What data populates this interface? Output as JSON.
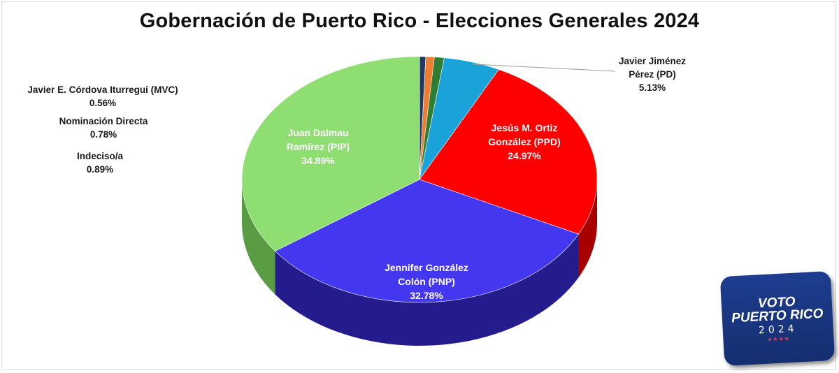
{
  "chart_data": {
    "type": "pie",
    "title": "Gobernación de Puerto Rico - Elecciones Generales 2024",
    "slices": [
      {
        "label": "Jesús M. Ortiz González (PPD)",
        "lines": [
          "Jesús M. Ortiz",
          "González (PPD)"
        ],
        "value": 24.97,
        "value_label": "24.97%",
        "color": "#ff0000",
        "side": "#a80000"
      },
      {
        "label": "Jennifer González Colón (PNP)",
        "lines": [
          "Jennifer González",
          "Colón (PNP)"
        ],
        "value": 32.78,
        "value_label": "32.78%",
        "color": "#4338f0",
        "side": "#241c8c"
      },
      {
        "label": "Juan Dalmau Ramírez (PIP)",
        "lines": [
          "Juan Dalmau",
          "Ramírez (PIP)"
        ],
        "value": 34.89,
        "value_label": "34.89%",
        "color": "#8ede72",
        "side": "#5a9c44"
      },
      {
        "label": "Javier E. Córdova Iturregui (MVC)",
        "lines": [
          "Javier E. Córdova Iturregui (MVC)"
        ],
        "value": 0.56,
        "value_label": "0.56%",
        "color": "#1f3864",
        "side": "#12213c"
      },
      {
        "label": "Nominación Directa",
        "lines": [
          "Nominación Directa"
        ],
        "value": 0.78,
        "value_label": "0.78%",
        "color": "#ed7d31",
        "side": "#a0531f"
      },
      {
        "label": "Indeciso/a",
        "lines": [
          "Indeciso/a"
        ],
        "value": 0.89,
        "value_label": "0.89%",
        "color": "#2e7d32",
        "side": "#1b4d1e"
      },
      {
        "label": "Javier Jiménez Pérez (PD)",
        "lines": [
          "Javier Jiménez",
          "Pérez (PD)"
        ],
        "value": 5.13,
        "value_label": "5.13%",
        "color": "#1aa3d9",
        "side": "#0f6b91"
      }
    ]
  },
  "logo": {
    "line1": "VOTO",
    "line2": "PUERTO RICO",
    "line3": "2024",
    "stars": "★★★★"
  }
}
